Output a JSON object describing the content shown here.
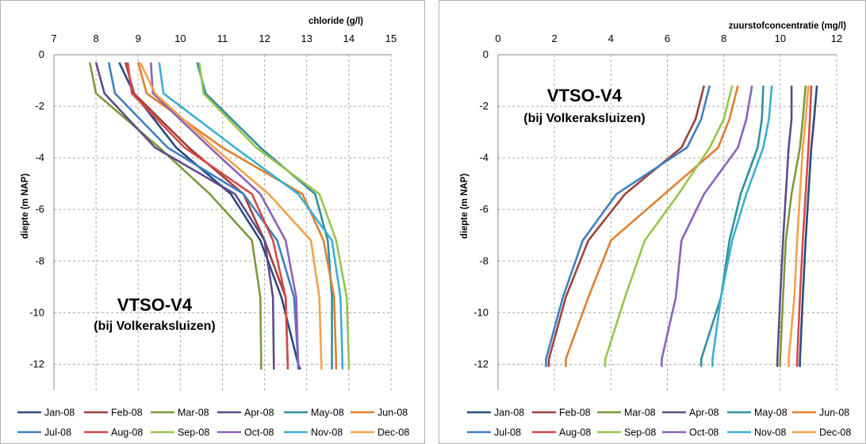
{
  "chart_data": [
    {
      "type": "line",
      "title": "",
      "xlabel": "chloride (g/l)",
      "ylabel": "diepte (m NAP)",
      "x_axis_position": "top",
      "xlim": [
        7,
        15
      ],
      "ylim": [
        -13,
        0
      ],
      "xticks": [
        "7",
        "8",
        "9",
        "10",
        "11",
        "12",
        "13",
        "14",
        "15"
      ],
      "yticks": [
        "0",
        "-2",
        "-4",
        "-6",
        "-8",
        "-10",
        "-12"
      ],
      "grid": true,
      "legend_position": "bottom",
      "annotation": {
        "main": "VTSO-V4",
        "sub": "(bij Volkeraksluizen)"
      },
      "series": [
        {
          "name": "Jan-08",
          "color": "#2a4a7f",
          "x": [
            8.55,
            8.9,
            9.9,
            11.2,
            11.9,
            12.4,
            12.8,
            12.85
          ],
          "y": [
            -0.3,
            -1.5,
            -3.6,
            -5.4,
            -7.2,
            -9.4,
            -12.0,
            -12.2
          ]
        },
        {
          "name": "Feb-08",
          "color": "#a0403a",
          "x": [
            8.7,
            8.9,
            10.2,
            11.5,
            12.0,
            12.5,
            12.55,
            12.55
          ],
          "y": [
            -0.3,
            -1.5,
            -3.6,
            -5.4,
            -7.2,
            -9.4,
            -12.0,
            -12.2
          ]
        },
        {
          "name": "Mar-08",
          "color": "#7a9a3a",
          "x": [
            7.85,
            8.0,
            9.5,
            10.7,
            11.7,
            11.9,
            11.92,
            11.92
          ],
          "y": [
            -0.3,
            -1.5,
            -3.6,
            -5.4,
            -7.2,
            -9.4,
            -12.0,
            -12.2
          ]
        },
        {
          "name": "Apr-08",
          "color": "#5e4a8a",
          "x": [
            8.0,
            8.2,
            9.4,
            11.3,
            12.0,
            12.2,
            12.22,
            12.22
          ],
          "y": [
            -0.3,
            -1.5,
            -3.6,
            -5.4,
            -7.2,
            -9.4,
            -12.0,
            -12.2
          ]
        },
        {
          "name": "May-08",
          "color": "#2f8fa0",
          "x": [
            10.4,
            10.6,
            11.9,
            13.2,
            13.5,
            13.6,
            13.6,
            13.6
          ],
          "y": [
            -0.3,
            -1.5,
            -3.6,
            -5.4,
            -7.2,
            -9.4,
            -12.0,
            -12.2
          ]
        },
        {
          "name": "Jun-08",
          "color": "#e07f2e",
          "x": [
            9.0,
            9.2,
            11.0,
            12.9,
            13.4,
            13.65,
            13.7,
            13.7
          ],
          "y": [
            -0.3,
            -1.5,
            -3.6,
            -5.4,
            -7.2,
            -9.4,
            -12.0,
            -12.2
          ]
        },
        {
          "name": "Jul-08",
          "color": "#3e7fc4",
          "x": [
            8.3,
            8.45,
            9.7,
            11.5,
            12.3,
            12.7,
            12.8,
            12.8
          ],
          "y": [
            -0.3,
            -1.5,
            -3.6,
            -5.4,
            -7.2,
            -9.4,
            -12.0,
            -12.2
          ]
        },
        {
          "name": "Aug-08",
          "color": "#d24a46",
          "x": [
            8.75,
            8.85,
            10.1,
            11.7,
            12.2,
            12.5,
            12.55,
            12.55
          ],
          "y": [
            -0.3,
            -1.5,
            -3.6,
            -5.4,
            -7.2,
            -9.4,
            -12.0,
            -12.2
          ]
        },
        {
          "name": "Sep-08",
          "color": "#98c44a",
          "x": [
            10.45,
            10.55,
            11.8,
            13.3,
            13.7,
            13.95,
            14.0,
            14.0
          ],
          "y": [
            -0.3,
            -1.5,
            -3.6,
            -5.4,
            -7.2,
            -9.4,
            -12.0,
            -12.2
          ]
        },
        {
          "name": "Oct-08",
          "color": "#8a62b8",
          "x": [
            9.3,
            9.35,
            10.7,
            11.9,
            12.5,
            12.75,
            12.8,
            12.8
          ],
          "y": [
            -0.3,
            -1.5,
            -3.6,
            -5.4,
            -7.2,
            -9.4,
            -12.0,
            -12.2
          ]
        },
        {
          "name": "Nov-08",
          "color": "#3aafd0",
          "x": [
            9.5,
            9.6,
            11.3,
            12.8,
            13.6,
            13.8,
            13.85,
            13.85
          ],
          "y": [
            -0.3,
            -1.5,
            -3.6,
            -5.4,
            -7.2,
            -9.4,
            -12.0,
            -12.2
          ]
        },
        {
          "name": "Dec-08",
          "color": "#f4a048",
          "x": [
            9.05,
            9.4,
            10.8,
            12.1,
            13.1,
            13.3,
            13.35,
            13.35
          ],
          "y": [
            -0.3,
            -1.5,
            -3.6,
            -5.4,
            -7.2,
            -9.4,
            -12.0,
            -12.2
          ]
        }
      ]
    },
    {
      "type": "line",
      "title": "",
      "xlabel": "zuurstofconcentratie (mg/l)",
      "ylabel": "diepte (m NAP)",
      "x_axis_position": "top",
      "xlim": [
        0,
        12
      ],
      "ylim": [
        -13,
        0
      ],
      "xticks": [
        "0",
        "2",
        "4",
        "6",
        "8",
        "10",
        "12"
      ],
      "yticks": [
        "0",
        "-2",
        "-4",
        "-6",
        "-8",
        "-10",
        "-12"
      ],
      "grid": true,
      "legend_position": "bottom",
      "annotation": {
        "main": "VTSO-V4",
        "sub": "(bij Volkeraksluizen)"
      },
      "series": [
        {
          "name": "Jan-08",
          "color": "#2a4a7f",
          "x": [
            11.3,
            11.2,
            11.1,
            11.0,
            10.9,
            10.8,
            10.7,
            10.7
          ],
          "y": [
            -1.2,
            -2.5,
            -3.6,
            -5.4,
            -7.2,
            -9.4,
            -11.8,
            -12.1
          ]
        },
        {
          "name": "Feb-08",
          "color": "#a0403a",
          "x": [
            7.3,
            7.0,
            6.5,
            4.5,
            3.2,
            2.4,
            1.8,
            1.8
          ],
          "y": [
            -1.2,
            -2.5,
            -3.6,
            -5.4,
            -7.2,
            -9.4,
            -11.8,
            -12.1
          ]
        },
        {
          "name": "Mar-08",
          "color": "#7a9a3a",
          "x": [
            10.9,
            10.8,
            10.7,
            10.4,
            10.2,
            10.1,
            10.0,
            10.0
          ],
          "y": [
            -1.2,
            -2.5,
            -3.6,
            -5.4,
            -7.2,
            -9.4,
            -11.8,
            -12.1
          ]
        },
        {
          "name": "Apr-08",
          "color": "#5e4a8a",
          "x": [
            10.4,
            10.4,
            10.3,
            10.2,
            10.1,
            10.0,
            9.9,
            9.9
          ],
          "y": [
            -1.2,
            -2.5,
            -3.6,
            -5.4,
            -7.2,
            -9.4,
            -11.8,
            -12.1
          ]
        },
        {
          "name": "May-08",
          "color": "#2f8fa0",
          "x": [
            9.4,
            9.35,
            9.2,
            8.6,
            8.2,
            7.9,
            7.2,
            7.2
          ],
          "y": [
            -1.2,
            -2.5,
            -3.6,
            -5.4,
            -7.2,
            -9.4,
            -11.8,
            -12.1
          ]
        },
        {
          "name": "Jun-08",
          "color": "#e07f2e",
          "x": [
            8.5,
            8.2,
            7.8,
            5.9,
            4.0,
            3.2,
            2.4,
            2.4
          ],
          "y": [
            -1.2,
            -2.5,
            -3.6,
            -5.4,
            -7.2,
            -9.4,
            -11.8,
            -12.1
          ]
        },
        {
          "name": "Jul-08",
          "color": "#3e7fc4",
          "x": [
            7.5,
            7.2,
            6.7,
            4.2,
            3.0,
            2.3,
            1.7,
            1.7
          ],
          "y": [
            -1.2,
            -2.5,
            -3.6,
            -5.4,
            -7.2,
            -9.4,
            -11.8,
            -12.1
          ]
        },
        {
          "name": "Aug-08",
          "color": "#d24a46",
          "x": [
            11.1,
            11.05,
            11.0,
            10.9,
            10.8,
            10.7,
            10.6,
            10.6
          ],
          "y": [
            -1.2,
            -2.5,
            -3.6,
            -5.4,
            -7.2,
            -9.4,
            -11.8,
            -12.1
          ]
        },
        {
          "name": "Sep-08",
          "color": "#98c44a",
          "x": [
            8.3,
            8.0,
            7.5,
            6.4,
            5.2,
            4.5,
            3.8,
            3.8
          ],
          "y": [
            -1.2,
            -2.5,
            -3.6,
            -5.4,
            -7.2,
            -9.4,
            -11.8,
            -12.1
          ]
        },
        {
          "name": "Oct-08",
          "color": "#8a62b8",
          "x": [
            9.0,
            8.8,
            8.5,
            7.3,
            6.5,
            6.3,
            5.8,
            5.8
          ],
          "y": [
            -1.2,
            -2.5,
            -3.6,
            -5.4,
            -7.2,
            -9.4,
            -11.8,
            -12.1
          ]
        },
        {
          "name": "Nov-08",
          "color": "#3aafd0",
          "x": [
            9.7,
            9.6,
            9.4,
            8.8,
            8.3,
            7.9,
            7.6,
            7.6
          ],
          "y": [
            -1.2,
            -2.5,
            -3.6,
            -5.4,
            -7.2,
            -9.4,
            -11.8,
            -12.1
          ]
        },
        {
          "name": "Dec-08",
          "color": "#f4a048",
          "x": [
            11.0,
            10.9,
            10.8,
            10.7,
            10.6,
            10.5,
            10.3,
            10.3
          ],
          "y": [
            -1.2,
            -2.5,
            -3.6,
            -5.4,
            -7.2,
            -9.4,
            -11.8,
            -12.1
          ]
        }
      ]
    }
  ]
}
